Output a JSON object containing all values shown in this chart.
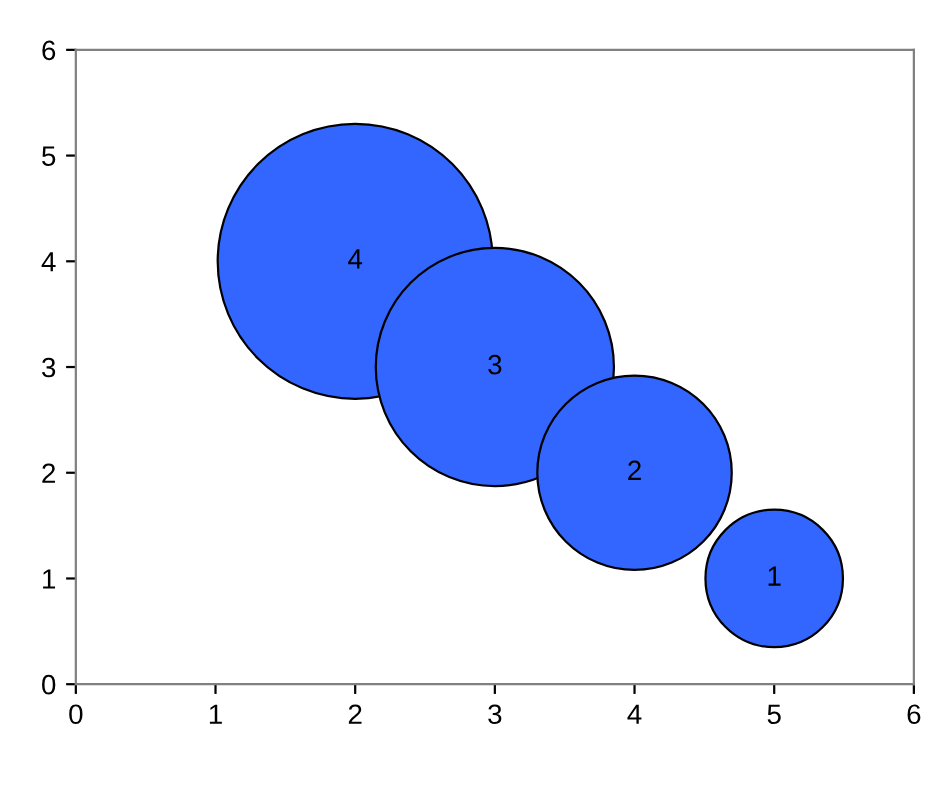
{
  "chart_data": {
    "type": "bubble",
    "x": [
      2,
      3,
      4,
      5
    ],
    "values": [
      4,
      3,
      2,
      1
    ],
    "sizes": [
      1,
      0.75,
      0.5,
      0.25
    ],
    "value_labels": [
      "4",
      "3",
      "2",
      "1"
    ],
    "color": "#3366ff",
    "xlim": [
      0,
      6
    ],
    "ylim": [
      0,
      6
    ],
    "xticks": [
      0,
      1,
      2,
      3,
      4,
      5,
      6
    ],
    "yticks": [
      0,
      1,
      2,
      3,
      4,
      5,
      6
    ],
    "grid": false,
    "legend": false
  }
}
